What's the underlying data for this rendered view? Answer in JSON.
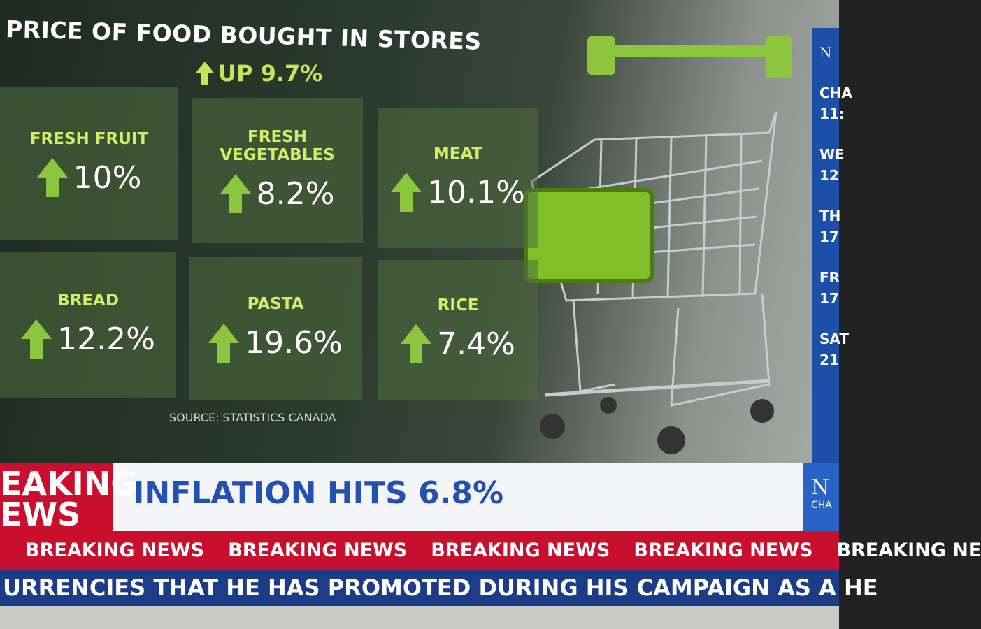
{
  "graphic": {
    "title": "PRICE OF FOOD BOUGHT IN STORES",
    "headline": "UP 9.7%",
    "tiles": [
      {
        "label": "FRESH FRUIT",
        "value": "10%"
      },
      {
        "label": "FRESH VEGETABLES",
        "value": "8.2%"
      },
      {
        "label": "MEAT",
        "value": "10.1%"
      },
      {
        "label": "BREAD",
        "value": "12.2%"
      },
      {
        "label": "PASTA",
        "value": "19.6%"
      },
      {
        "label": "RICE",
        "value": "7.4%"
      }
    ],
    "source": "SOURCE: STATISTICS CANADA"
  },
  "sidebar": {
    "logo": "N",
    "items": [
      "CHA",
      "11:",
      "WE",
      "12",
      "TH",
      "17",
      "FR",
      "17",
      "SAT",
      "21"
    ]
  },
  "banner": {
    "tag_top": "EAKING",
    "tag_bottom": "EWS",
    "headline": "INFLATION HITS 6.8%",
    "logo": "N",
    "logo_sub": "CHA"
  },
  "ticker": [
    "BREAKING NEWS",
    "BREAKING NEWS",
    "BREAKING NEWS",
    "BREAKING NEWS",
    "BREAKING NE"
  ],
  "crawl": "URRENCIES THAT HE HAS PROMOTED DURING HIS CAMPAIGN AS A HE"
}
